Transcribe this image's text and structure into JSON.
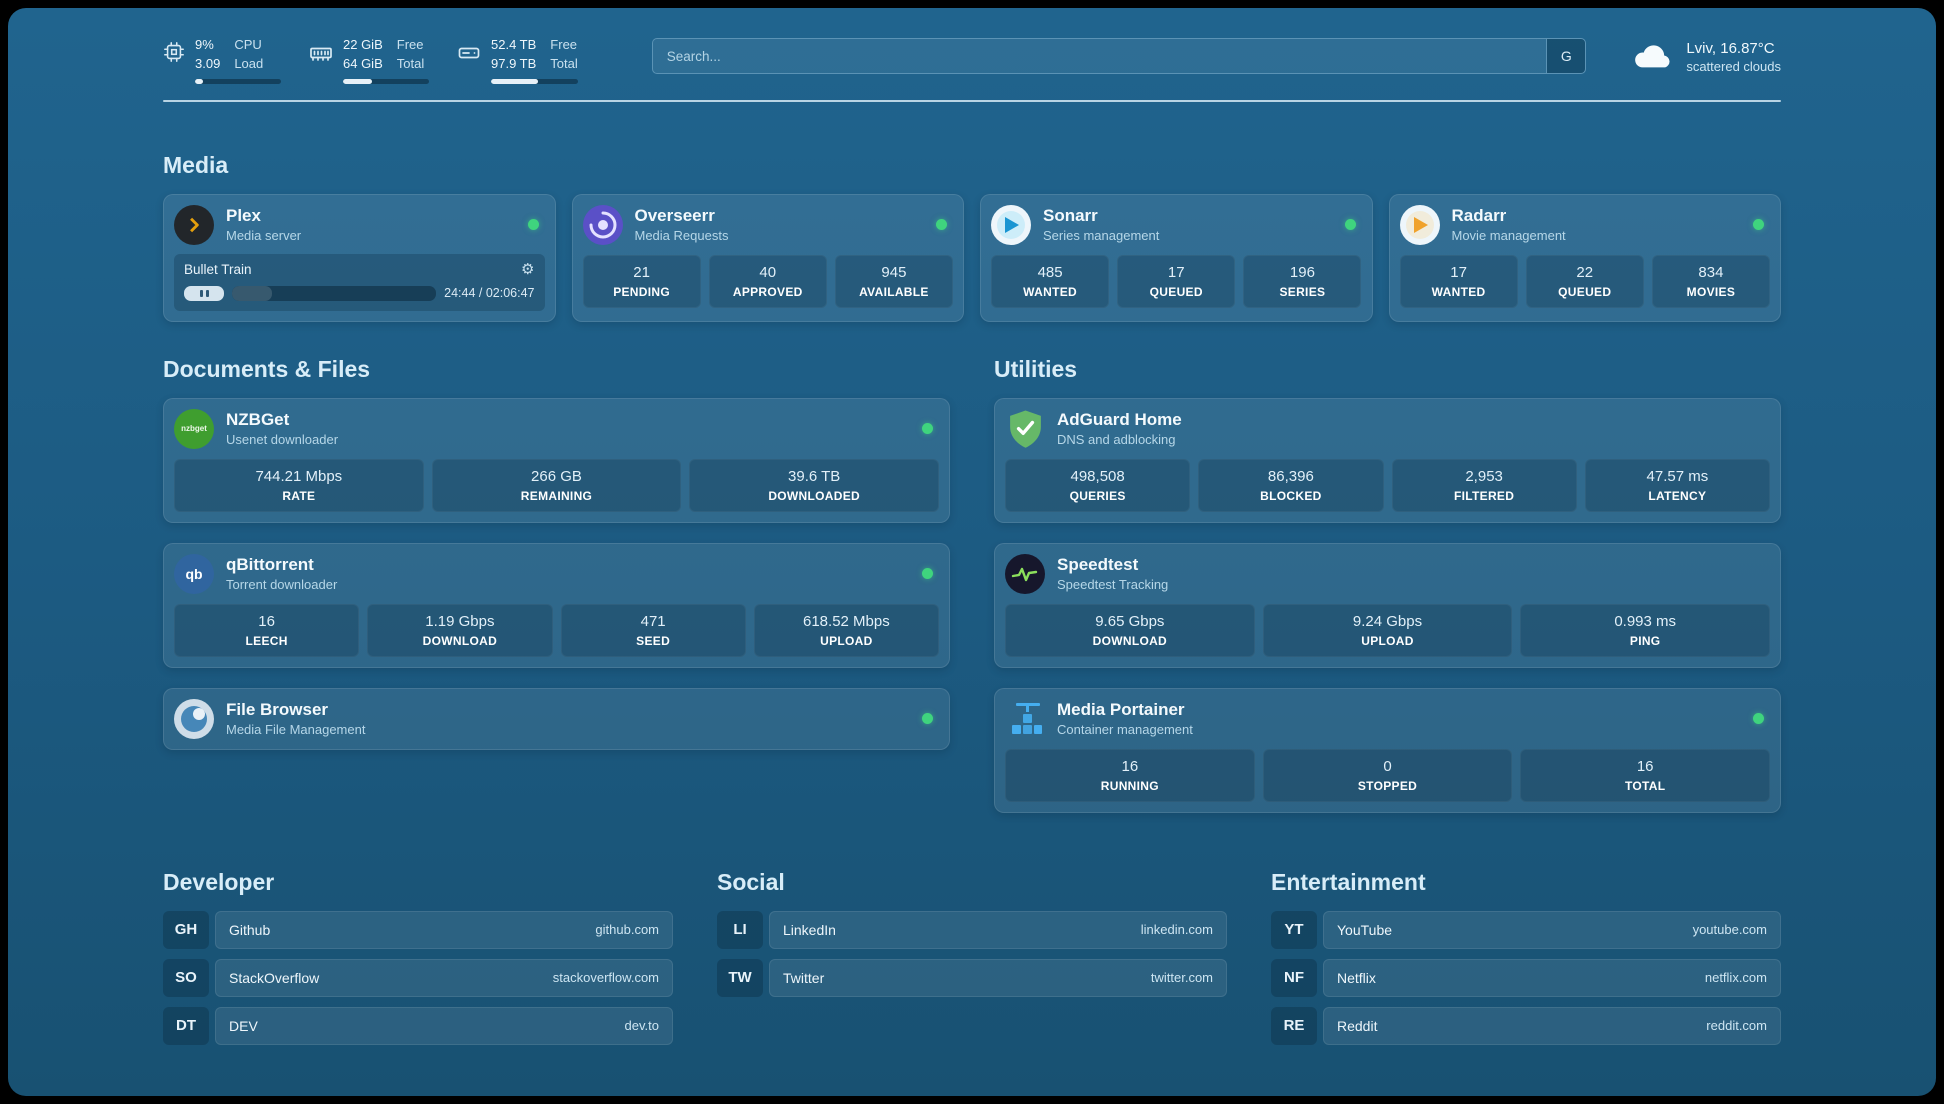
{
  "colors": {
    "background": "#1c5a81",
    "card": "#2c6c92",
    "status_online": "#3fd47e",
    "heading_text": "#d8edf8",
    "plex_accent": "#e5a00d"
  },
  "topbar": {
    "cpu": {
      "value1": "9%",
      "value2": "3.09",
      "label1": "CPU",
      "label2": "Load",
      "bar_percent": 9
    },
    "ram": {
      "value1": "22 GiB",
      "value2": "64 GiB",
      "label1": "Free",
      "label2": "Total",
      "bar_percent": 34
    },
    "disk": {
      "value1": "52.4 TB",
      "value2": "97.9 TB",
      "label1": "Free",
      "label2": "Total",
      "bar_percent": 54
    },
    "search": {
      "placeholder": "Search...",
      "button_label": "G"
    },
    "weather": {
      "location": "Lviv, 16.87°C",
      "condition": "scattered clouds"
    }
  },
  "media": {
    "heading": "Media",
    "plex": {
      "title": "Plex",
      "subtitle": "Media server",
      "now_playing": "Bullet Train",
      "time": "24:44 / 02:06:47",
      "progress_percent": 19.5
    },
    "overseerr": {
      "title": "Overseerr",
      "subtitle": "Media Requests",
      "stats": [
        {
          "value": "21",
          "label": "PENDING"
        },
        {
          "value": "40",
          "label": "APPROVED"
        },
        {
          "value": "945",
          "label": "AVAILABLE"
        }
      ]
    },
    "sonarr": {
      "title": "Sonarr",
      "subtitle": "Series management",
      "stats": [
        {
          "value": "485",
          "label": "WANTED"
        },
        {
          "value": "17",
          "label": "QUEUED"
        },
        {
          "value": "196",
          "label": "SERIES"
        }
      ]
    },
    "radarr": {
      "title": "Radarr",
      "subtitle": "Movie management",
      "stats": [
        {
          "value": "17",
          "label": "WANTED"
        },
        {
          "value": "22",
          "label": "QUEUED"
        },
        {
          "value": "834",
          "label": "MOVIES"
        }
      ]
    }
  },
  "documents": {
    "heading": "Documents & Files",
    "nzbget": {
      "title": "NZBGet",
      "subtitle": "Usenet downloader",
      "icon_text": "nzbget",
      "stats": [
        {
          "value": "744.21 Mbps",
          "label": "RATE"
        },
        {
          "value": "266 GB",
          "label": "REMAINING"
        },
        {
          "value": "39.6 TB",
          "label": "DOWNLOADED"
        }
      ]
    },
    "qbittorrent": {
      "title": "qBittorrent",
      "subtitle": "Torrent downloader",
      "icon_text": "qb",
      "stats": [
        {
          "value": "16",
          "label": "LEECH"
        },
        {
          "value": "1.19 Gbps",
          "label": "DOWNLOAD"
        },
        {
          "value": "471",
          "label": "SEED"
        },
        {
          "value": "618.52 Mbps",
          "label": "UPLOAD"
        }
      ]
    },
    "filebrowser": {
      "title": "File Browser",
      "subtitle": "Media File Management"
    }
  },
  "utilities": {
    "heading": "Utilities",
    "adguard": {
      "title": "AdGuard Home",
      "subtitle": "DNS and adblocking",
      "stats": [
        {
          "value": "498,508",
          "label": "QUERIES"
        },
        {
          "value": "86,396",
          "label": "BLOCKED"
        },
        {
          "value": "2,953",
          "label": "FILTERED"
        },
        {
          "value": "47.57 ms",
          "label": "LATENCY"
        }
      ]
    },
    "speedtest": {
      "title": "Speedtest",
      "subtitle": "Speedtest Tracking",
      "stats": [
        {
          "value": "9.65 Gbps",
          "label": "DOWNLOAD"
        },
        {
          "value": "9.24 Gbps",
          "label": "UPLOAD"
        },
        {
          "value": "0.993 ms",
          "label": "PING"
        }
      ]
    },
    "portainer": {
      "title": "Media Portainer",
      "subtitle": "Container management",
      "stats": [
        {
          "value": "16",
          "label": "RUNNING"
        },
        {
          "value": "0",
          "label": "STOPPED"
        },
        {
          "value": "16",
          "label": "TOTAL"
        }
      ]
    }
  },
  "links": {
    "developer": {
      "heading": "Developer",
      "items": [
        {
          "abbr": "GH",
          "name": "Github",
          "url": "github.com"
        },
        {
          "abbr": "SO",
          "name": "StackOverflow",
          "url": "stackoverflow.com"
        },
        {
          "abbr": "DT",
          "name": "DEV",
          "url": "dev.to"
        }
      ]
    },
    "social": {
      "heading": "Social",
      "items": [
        {
          "abbr": "LI",
          "name": "LinkedIn",
          "url": "linkedin.com"
        },
        {
          "abbr": "TW",
          "name": "Twitter",
          "url": "twitter.com"
        }
      ]
    },
    "entertainment": {
      "heading": "Entertainment",
      "items": [
        {
          "abbr": "YT",
          "name": "YouTube",
          "url": "youtube.com"
        },
        {
          "abbr": "NF",
          "name": "Netflix",
          "url": "netflix.com"
        },
        {
          "abbr": "RE",
          "name": "Reddit",
          "url": "reddit.com"
        }
      ]
    }
  }
}
